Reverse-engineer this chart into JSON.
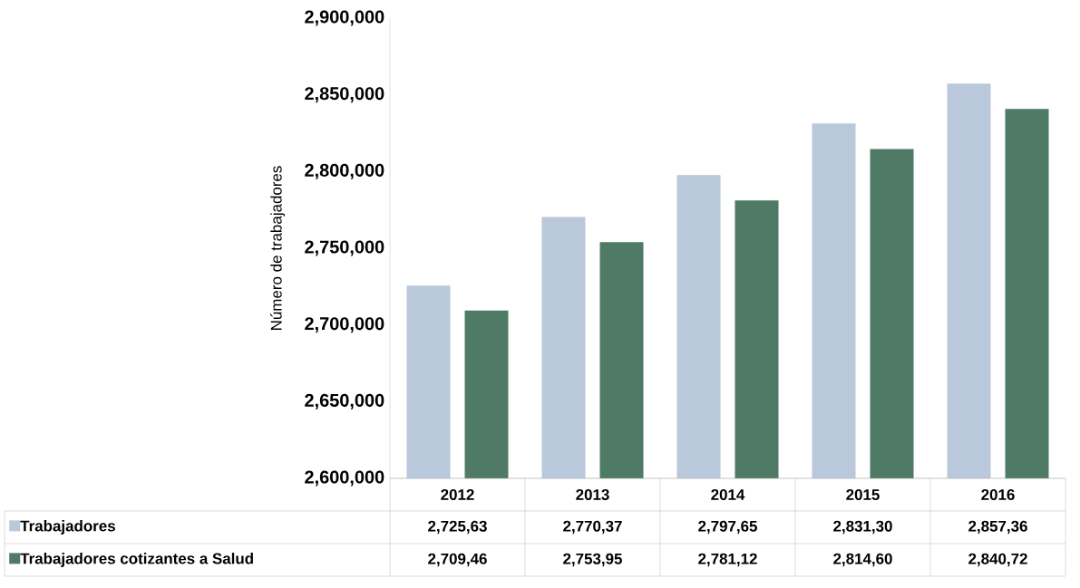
{
  "chart_data": {
    "type": "bar",
    "ylabel": "Número de trabajadores",
    "categories": [
      "2012",
      "2013",
      "2014",
      "2015",
      "2016"
    ],
    "series": [
      {
        "name": "Trabajadores",
        "color": "#b9c8da",
        "values": [
          2725630,
          2770370,
          2797650,
          2831300,
          2857360
        ],
        "value_labels": [
          "2,725,63",
          "2,770,37",
          "2,797,65",
          "2,831,30",
          "2,857,36"
        ]
      },
      {
        "name": "Trabajadores cotizantes a Salud",
        "color": "#4f7a66",
        "values": [
          2709460,
          2753950,
          2781120,
          2814600,
          2840720
        ],
        "value_labels": [
          "2,709,46",
          "2,753,95",
          "2,781,12",
          "2,814,60",
          "2,840,72"
        ]
      }
    ],
    "ylim": [
      2600000,
      2900000
    ],
    "legend": "bottom left",
    "yticks": [
      {
        "value": 2600000,
        "label": "2,600,000"
      },
      {
        "value": 2650000,
        "label": "2,650,000"
      },
      {
        "value": 2700000,
        "label": "2,700,000"
      },
      {
        "value": 2750000,
        "label": "2,750,000"
      },
      {
        "value": 2800000,
        "label": "2,800,000"
      },
      {
        "value": 2850000,
        "label": "2,850,000"
      },
      {
        "value": 2900000,
        "label": "2,900,000"
      }
    ]
  }
}
